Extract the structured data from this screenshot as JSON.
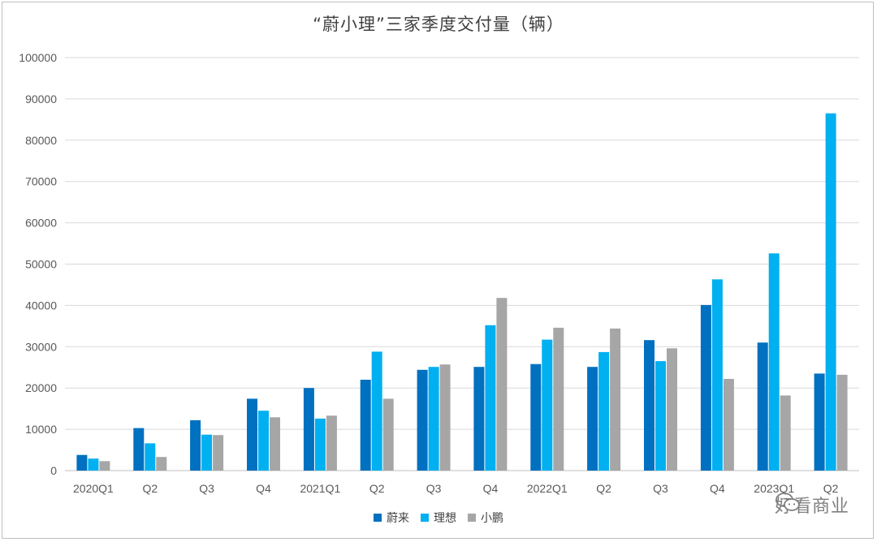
{
  "chart_data": {
    "type": "bar",
    "title": "“蔚小理”三家季度交付量（辆）",
    "categories": [
      "2020Q1",
      "Q2",
      "Q3",
      "Q4",
      "2021Q1",
      "Q2",
      "Q3",
      "Q4",
      "2022Q1",
      "Q2",
      "Q3",
      "Q4",
      "2023Q1",
      "Q2"
    ],
    "series": [
      {
        "name": "蔚来",
        "color": "#0070c0",
        "values": [
          3800,
          10300,
          12200,
          17400,
          20000,
          22000,
          24400,
          25100,
          25800,
          25100,
          31600,
          40100,
          31000,
          23500
        ]
      },
      {
        "name": "理想",
        "color": "#00b0f0",
        "values": [
          2900,
          6600,
          8700,
          14500,
          12600,
          28800,
          25100,
          35200,
          31700,
          28700,
          26500,
          46300,
          52600,
          86500
        ]
      },
      {
        "name": "小鹏",
        "color": "#a6a6a6",
        "values": [
          2300,
          3300,
          8600,
          12900,
          13300,
          17400,
          25700,
          41800,
          34600,
          34400,
          29600,
          22200,
          18200,
          23200
        ]
      }
    ],
    "ylim": [
      0,
      100000
    ],
    "yticks": [
      0,
      10000,
      20000,
      30000,
      40000,
      50000,
      60000,
      70000,
      80000,
      90000,
      100000
    ],
    "grid": true,
    "legend_position": "bottom"
  },
  "watermark": {
    "icon": "wechat-icon",
    "text": "好看商业"
  }
}
